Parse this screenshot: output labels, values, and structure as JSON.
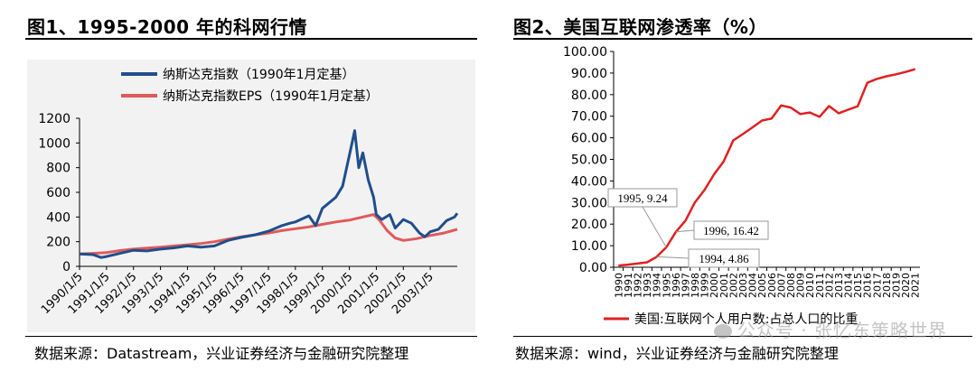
{
  "left": {
    "title": "图1、1995-2000 年的科网行情",
    "source": "数据来源：Datastream，兴业证券经济与金融研究院整理",
    "chart_data": {
      "type": "line",
      "title": "",
      "xlabel": "",
      "ylabel": "",
      "ylim": [
        0,
        1200
      ],
      "yticks": [
        0,
        200,
        400,
        600,
        800,
        1000,
        1200
      ],
      "xticks": [
        "1990/1/5",
        "1991/1/5",
        "1992/1/5",
        "1993/1/5",
        "1994/1/5",
        "1995/1/5",
        "1996/1/5",
        "1997/1/5",
        "1998/1/5",
        "1999/1/5",
        "2000/1/5",
        "2001/1/5",
        "2002/1/5",
        "2003/1/5"
      ],
      "legend_position": "top-center",
      "series": [
        {
          "name": "纳斯达克指数（1990年1月定基）",
          "color": "#1f4e8c",
          "points": [
            [
              1990.0,
              100
            ],
            [
              1990.5,
              95
            ],
            [
              1990.8,
              72
            ],
            [
              1991.0,
              80
            ],
            [
              1991.5,
              105
            ],
            [
              1992.0,
              130
            ],
            [
              1992.5,
              125
            ],
            [
              1993.0,
              140
            ],
            [
              1993.5,
              150
            ],
            [
              1994.0,
              165
            ],
            [
              1994.5,
              155
            ],
            [
              1995.0,
              165
            ],
            [
              1995.5,
              210
            ],
            [
              1996.0,
              235
            ],
            [
              1996.5,
              255
            ],
            [
              1997.0,
              285
            ],
            [
              1997.5,
              330
            ],
            [
              1997.8,
              350
            ],
            [
              1998.0,
              360
            ],
            [
              1998.5,
              410
            ],
            [
              1998.75,
              330
            ],
            [
              1999.0,
              470
            ],
            [
              1999.5,
              560
            ],
            [
              1999.75,
              650
            ],
            [
              2000.0,
              900
            ],
            [
              2000.2,
              1100
            ],
            [
              2000.35,
              800
            ],
            [
              2000.5,
              920
            ],
            [
              2000.7,
              700
            ],
            [
              2000.9,
              560
            ],
            [
              2001.0,
              420
            ],
            [
              2001.2,
              380
            ],
            [
              2001.5,
              420
            ],
            [
              2001.7,
              310
            ],
            [
              2002.0,
              380
            ],
            [
              2002.3,
              350
            ],
            [
              2002.6,
              270
            ],
            [
              2002.8,
              240
            ],
            [
              2003.0,
              280
            ],
            [
              2003.3,
              300
            ],
            [
              2003.6,
              370
            ],
            [
              2003.9,
              400
            ],
            [
              2004.0,
              430
            ]
          ]
        },
        {
          "name": "纳斯达克指数EPS（1990年1月定基）",
          "color": "#e05a5a",
          "points": [
            [
              1990.0,
              100
            ],
            [
              1990.5,
              105
            ],
            [
              1991.0,
              112
            ],
            [
              1991.5,
              128
            ],
            [
              1992.0,
              140
            ],
            [
              1992.5,
              148
            ],
            [
              1993.0,
              155
            ],
            [
              1993.5,
              165
            ],
            [
              1994.0,
              175
            ],
            [
              1994.5,
              185
            ],
            [
              1995.0,
              200
            ],
            [
              1995.5,
              220
            ],
            [
              1996.0,
              240
            ],
            [
              1996.5,
              255
            ],
            [
              1997.0,
              270
            ],
            [
              1997.5,
              290
            ],
            [
              1998.0,
              305
            ],
            [
              1998.5,
              320
            ],
            [
              1999.0,
              340
            ],
            [
              1999.5,
              360
            ],
            [
              2000.0,
              375
            ],
            [
              2000.5,
              400
            ],
            [
              2000.9,
              420
            ],
            [
              2001.1,
              380
            ],
            [
              2001.4,
              290
            ],
            [
              2001.7,
              230
            ],
            [
              2002.0,
              210
            ],
            [
              2002.5,
              225
            ],
            [
              2003.0,
              250
            ],
            [
              2003.5,
              270
            ],
            [
              2004.0,
              300
            ]
          ]
        }
      ]
    }
  },
  "right": {
    "title": "图2、美国互联网渗透率（%）",
    "source": "数据来源：wind，兴业证券经济与金融研究院整理",
    "watermark": "公众号 · 张忆东策略世界",
    "chart_data": {
      "type": "line",
      "title": "",
      "xlabel": "",
      "ylabel": "",
      "ylim": [
        0,
        100
      ],
      "yticks": [
        "0.00",
        "10.00",
        "20.00",
        "30.00",
        "40.00",
        "50.00",
        "60.00",
        "70.00",
        "80.00",
        "90.00",
        "100.00"
      ],
      "x": [
        1990,
        1991,
        1992,
        1993,
        1994,
        1995,
        1996,
        1997,
        1998,
        1999,
        2000,
        2001,
        2002,
        2003,
        2004,
        2005,
        2006,
        2007,
        2008,
        2009,
        2010,
        2011,
        2012,
        2013,
        2014,
        2015,
        2016,
        2017,
        2018,
        2019,
        2020,
        2021
      ],
      "legend_position": "bottom",
      "series": [
        {
          "name": "美国:互联网个人用户数:占总人口的比重",
          "color": "#e02020",
          "values": [
            0.8,
            1.2,
            1.7,
            2.3,
            4.86,
            9.24,
            16.42,
            21.6,
            30.1,
            35.8,
            43.1,
            49.1,
            58.8,
            61.7,
            64.8,
            68.0,
            68.9,
            75.0,
            74.0,
            71.0,
            71.7,
            69.7,
            74.7,
            71.4,
            73.0,
            74.6,
            85.5,
            87.3,
            88.5,
            89.4,
            90.5,
            91.8
          ]
        }
      ],
      "annotations": [
        {
          "label": "1994, 4.86",
          "x": 1994,
          "y": 4.86
        },
        {
          "label": "1995, 9.24",
          "x": 1995,
          "y": 9.24
        },
        {
          "label": "1996, 16.42",
          "x": 1996,
          "y": 16.42
        }
      ]
    }
  }
}
